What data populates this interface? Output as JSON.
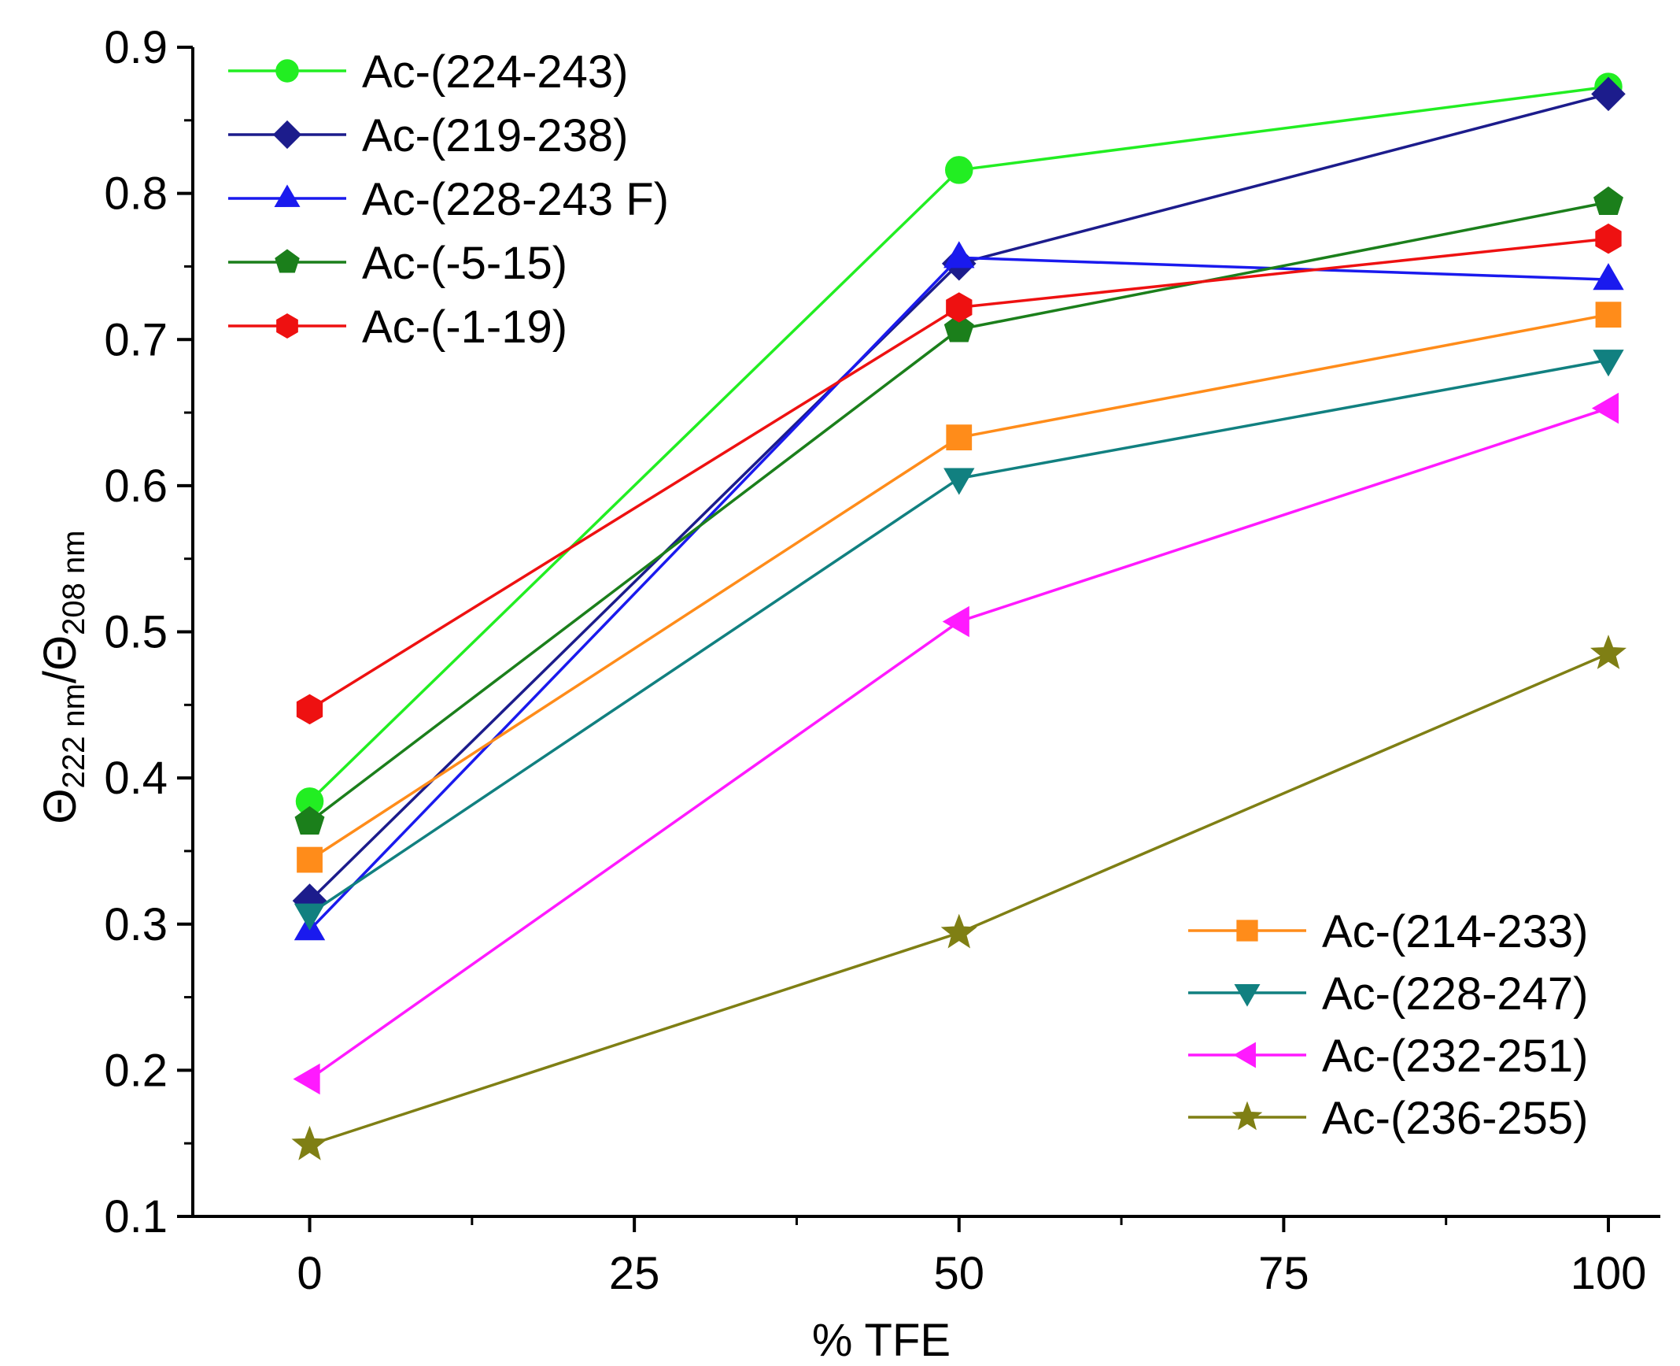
{
  "chart_data": {
    "type": "line",
    "title": "",
    "xlabel": "% TFE",
    "ylabel": {
      "symbol": "Θ",
      "sub1": "222 nm",
      "sep": "/",
      "sub2": "208 nm"
    },
    "xlim": [
      -9,
      104
    ],
    "ylim": [
      0.1,
      0.9
    ],
    "x_major_ticks": [
      0,
      25,
      50,
      75,
      100
    ],
    "x_tick_labels": [
      "0",
      "25",
      "50",
      "75",
      "100"
    ],
    "x_minor_ticks": [
      12.5,
      37.5,
      62.5,
      87.5
    ],
    "y_major_ticks": [
      0.1,
      0.2,
      0.3,
      0.4,
      0.5,
      0.6,
      0.7,
      0.8,
      0.9
    ],
    "y_tick_labels": [
      "0.1",
      "0.2",
      "0.3",
      "0.4",
      "0.5",
      "0.6",
      "0.7",
      "0.8",
      "0.9"
    ],
    "y_minor_ticks": [
      0.15,
      0.25,
      0.35,
      0.45,
      0.55,
      0.65,
      0.75,
      0.85
    ],
    "grid": false,
    "x": [
      0,
      50,
      100
    ],
    "series": [
      {
        "name": "Ac-(224-243)",
        "values": [
          0.384,
          0.816,
          0.873
        ],
        "color": "#22ee22",
        "marker": "circle",
        "legend": "top-left"
      },
      {
        "name": "Ac-(219-238)",
        "values": [
          0.316,
          0.752,
          0.868
        ],
        "color": "#1c1c8c",
        "marker": "diamond",
        "legend": "top-left"
      },
      {
        "name": "Ac-(228-243 F)",
        "values": [
          0.296,
          0.756,
          0.741
        ],
        "color": "#1a1aee",
        "marker": "triangle-up",
        "legend": "top-left"
      },
      {
        "name": "Ac-(-5-15)",
        "values": [
          0.37,
          0.707,
          0.794
        ],
        "color": "#1b7f1b",
        "marker": "pentagon",
        "legend": "top-left"
      },
      {
        "name": "Ac-(-1-19)",
        "values": [
          0.447,
          0.722,
          0.769
        ],
        "color": "#ee1111",
        "marker": "hexagon",
        "legend": "top-left"
      },
      {
        "name": "Ac-(214-233)",
        "values": [
          0.344,
          0.633,
          0.717
        ],
        "color": "#ff8c1a",
        "marker": "square",
        "legend": "bottom-right"
      },
      {
        "name": "Ac-(228-247)",
        "values": [
          0.307,
          0.605,
          0.686
        ],
        "color": "#118080",
        "marker": "triangle-down",
        "legend": "bottom-right"
      },
      {
        "name": "Ac-(232-251)",
        "values": [
          0.194,
          0.507,
          0.653
        ],
        "color": "#ff1aff",
        "marker": "triangle-left",
        "legend": "bottom-right"
      },
      {
        "name": "Ac-(236-255)",
        "values": [
          0.149,
          0.294,
          0.485
        ],
        "color": "#7f7f14",
        "marker": "star",
        "legend": "bottom-right"
      }
    ]
  }
}
